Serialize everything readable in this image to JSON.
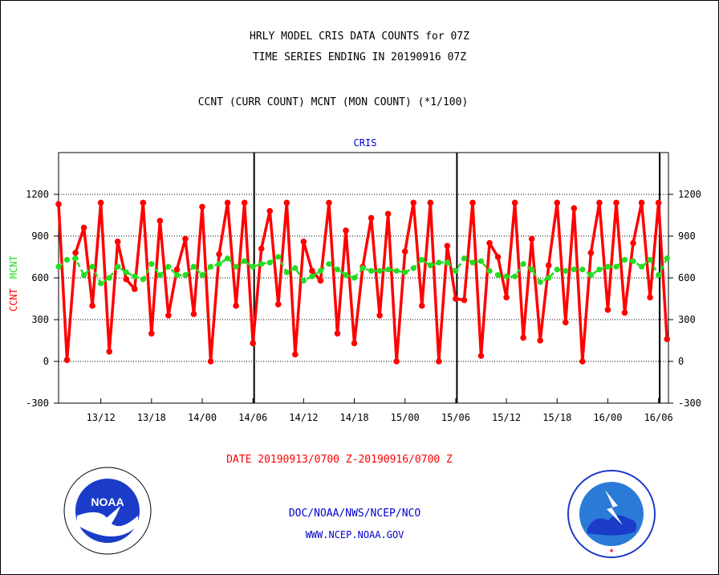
{
  "header": {
    "title_line1": "HRLY MODEL CRIS DATA COUNTS for 07Z",
    "title_line2": "TIME SERIES ENDING IN 20190916 07Z",
    "legend_line": "CCNT (CURR COUNT) MCNT (MON COUNT) (*1/100)",
    "subtitle": "CRIS"
  },
  "footer": {
    "date_range": "DATE 20190913/0700 Z-20190916/0700 Z",
    "credit_line1": "DOC/NOAA/NWS/NCEP/NCO",
    "credit_line2": "WWW.NCEP.NOAA.GOV"
  },
  "logos": {
    "left": "NOAA",
    "right": "NATIONAL WEATHER SERVICE"
  },
  "chart_data": {
    "type": "line",
    "x_start": "20190913/0700 Z",
    "x_end": "20190916/0700 Z",
    "x_unit": "hour",
    "y_left_label_ccnt": "CCNT",
    "y_left_label_mcnt": "MCNT",
    "ylim": [
      -300,
      1500
    ],
    "yticks": [
      -300,
      0,
      300,
      600,
      900,
      1200
    ],
    "xticks": [
      {
        "label": "13/12",
        "hour": 5
      },
      {
        "label": "13/18",
        "hour": 11
      },
      {
        "label": "14/00",
        "hour": 17
      },
      {
        "label": "14/06",
        "hour": 23
      },
      {
        "label": "14/12",
        "hour": 29
      },
      {
        "label": "14/18",
        "hour": 35
      },
      {
        "label": "15/00",
        "hour": 41
      },
      {
        "label": "15/06",
        "hour": 47
      },
      {
        "label": "15/12",
        "hour": 53
      },
      {
        "label": "15/18",
        "hour": 59
      },
      {
        "label": "16/00",
        "hour": 65
      },
      {
        "label": "16/06",
        "hour": 71
      }
    ],
    "day_separators_hours": [
      23,
      47,
      71
    ],
    "grid": true,
    "series": [
      {
        "name": "CCNT",
        "color": "#ff0000",
        "values": [
          1130,
          10,
          780,
          960,
          400,
          1140,
          70,
          860,
          590,
          520,
          1140,
          200,
          1010,
          330,
          660,
          880,
          340,
          1110,
          0,
          770,
          1140,
          400,
          1140,
          130,
          810,
          1080,
          410,
          1140,
          50,
          860,
          650,
          580,
          1140,
          200,
          940,
          130,
          680,
          1030,
          330,
          1060,
          0,
          790,
          1140,
          400,
          1140,
          0,
          830,
          450,
          440,
          1140,
          40,
          850,
          750,
          460,
          1140,
          170,
          880,
          150,
          690,
          1140,
          280,
          1100,
          0,
          780,
          1140,
          370,
          1140,
          350,
          850,
          1140,
          460,
          1140,
          160
        ]
      },
      {
        "name": "MCNT",
        "color": "#22dd22",
        "values": [
          680,
          730,
          740,
          620,
          680,
          560,
          600,
          680,
          640,
          610,
          590,
          700,
          620,
          680,
          620,
          620,
          680,
          620,
          680,
          700,
          740,
          680,
          720,
          680,
          700,
          710,
          750,
          640,
          670,
          580,
          610,
          650,
          700,
          660,
          620,
          600,
          670,
          650,
          650,
          660,
          650,
          640,
          670,
          730,
          690,
          710,
          710,
          650,
          740,
          710,
          720,
          650,
          620,
          610,
          610,
          700,
          660,
          570,
          600,
          660,
          650,
          660,
          660,
          620,
          660,
          680,
          680,
          730,
          720,
          680,
          730,
          620,
          740
        ]
      }
    ]
  }
}
